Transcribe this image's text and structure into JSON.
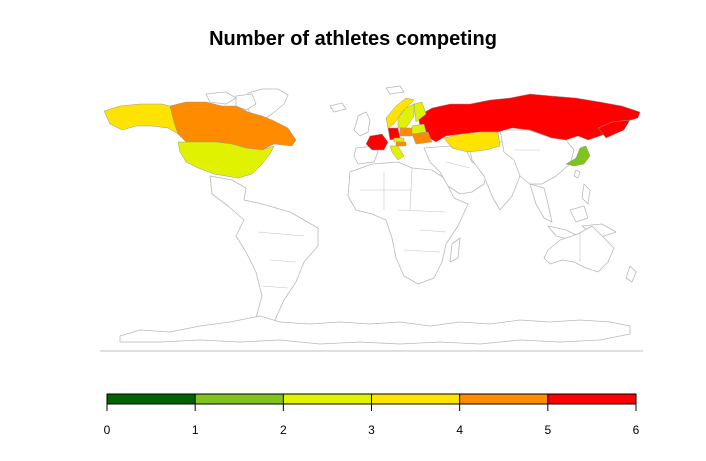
{
  "title": "Number of athletes competing",
  "chart_data": {
    "type": "choropleth",
    "title": "Number of athletes competing",
    "legend": {
      "position": "bottom",
      "breaks": [
        0,
        1,
        2,
        3,
        4,
        5,
        6
      ],
      "tick_labels": [
        "0",
        "1",
        "2",
        "3",
        "4",
        "5",
        "6"
      ],
      "colors": [
        "#006400",
        "#7FC31C",
        "#E1F201",
        "#FFE300",
        "#FF8C00",
        "#FF0000"
      ]
    },
    "regions": [
      {
        "name": "Alaska (United States)",
        "value": 3
      },
      {
        "name": "Canada",
        "value": 4.5
      },
      {
        "name": "United States",
        "value": 2.5
      },
      {
        "name": "Russia",
        "value": 5.5
      },
      {
        "name": "Kazakhstan",
        "value": 3.5
      },
      {
        "name": "Japan",
        "value": 1.5
      },
      {
        "name": "Norway",
        "value": 3
      },
      {
        "name": "Sweden",
        "value": 2.5
      },
      {
        "name": "Finland",
        "value": 2.5
      },
      {
        "name": "France",
        "value": 5.5
      },
      {
        "name": "Germany",
        "value": 5.5
      },
      {
        "name": "Poland",
        "value": 4.5
      },
      {
        "name": "Ukraine",
        "value": 4.5
      },
      {
        "name": "Belarus",
        "value": 2.5
      },
      {
        "name": "Italy",
        "value": 2.5
      },
      {
        "name": "Czech Republic",
        "value": 2.5
      },
      {
        "name": "Austria",
        "value": 4.5
      }
    ]
  }
}
